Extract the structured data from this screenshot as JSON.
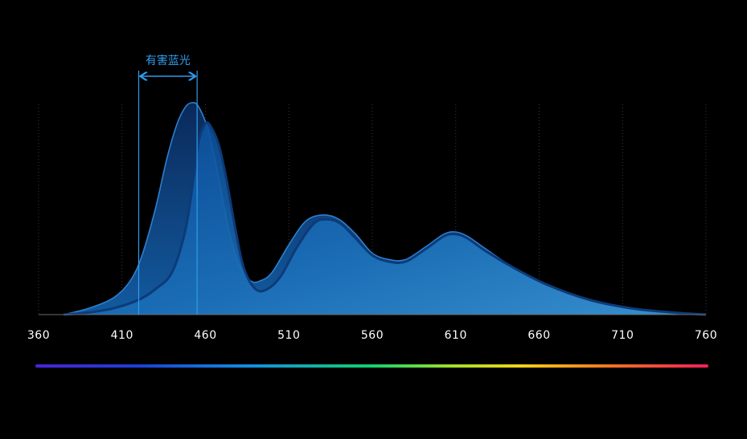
{
  "chart_data": {
    "type": "area",
    "xlabel": "",
    "ylabel": "",
    "xlim": [
      360,
      760
    ],
    "ylim": [
      0,
      1
    ],
    "grid": true,
    "x_ticks": [
      360,
      410,
      460,
      510,
      560,
      610,
      660,
      710,
      760
    ],
    "annotation": {
      "label": "有害蓝光",
      "range": [
        420,
        455
      ]
    },
    "spectrum_bar": true,
    "series": [
      {
        "style": "front-lighter",
        "points": [
          [
            375,
            0.0
          ],
          [
            390,
            0.01
          ],
          [
            405,
            0.03
          ],
          [
            420,
            0.07
          ],
          [
            430,
            0.12
          ],
          [
            440,
            0.2
          ],
          [
            448,
            0.4
          ],
          [
            453,
            0.65
          ],
          [
            456,
            0.82
          ],
          [
            460,
            0.9
          ],
          [
            463,
            0.89
          ],
          [
            468,
            0.8
          ],
          [
            473,
            0.62
          ],
          [
            478,
            0.4
          ],
          [
            483,
            0.22
          ],
          [
            490,
            0.12
          ],
          [
            497,
            0.12
          ],
          [
            505,
            0.18
          ],
          [
            515,
            0.32
          ],
          [
            525,
            0.43
          ],
          [
            533,
            0.45
          ],
          [
            541,
            0.43
          ],
          [
            550,
            0.36
          ],
          [
            560,
            0.28
          ],
          [
            570,
            0.25
          ],
          [
            580,
            0.25
          ],
          [
            592,
            0.31
          ],
          [
            603,
            0.37
          ],
          [
            610,
            0.38
          ],
          [
            617,
            0.36
          ],
          [
            628,
            0.3
          ],
          [
            645,
            0.22
          ],
          [
            665,
            0.14
          ],
          [
            690,
            0.07
          ],
          [
            715,
            0.03
          ],
          [
            740,
            0.01
          ],
          [
            760,
            0.0
          ]
        ]
      },
      {
        "style": "back-darker",
        "points": [
          [
            375,
            0.0
          ],
          [
            390,
            0.03
          ],
          [
            405,
            0.08
          ],
          [
            415,
            0.16
          ],
          [
            422,
            0.28
          ],
          [
            430,
            0.5
          ],
          [
            437,
            0.74
          ],
          [
            443,
            0.9
          ],
          [
            448,
            0.98
          ],
          [
            452,
            1.0
          ],
          [
            456,
            0.98
          ],
          [
            462,
            0.86
          ],
          [
            468,
            0.64
          ],
          [
            474,
            0.4
          ],
          [
            480,
            0.24
          ],
          [
            487,
            0.16
          ],
          [
            493,
            0.16
          ],
          [
            500,
            0.2
          ],
          [
            510,
            0.33
          ],
          [
            520,
            0.44
          ],
          [
            530,
            0.47
          ],
          [
            540,
            0.45
          ],
          [
            550,
            0.38
          ],
          [
            560,
            0.29
          ],
          [
            570,
            0.26
          ],
          [
            580,
            0.26
          ],
          [
            592,
            0.32
          ],
          [
            603,
            0.38
          ],
          [
            610,
            0.39
          ],
          [
            617,
            0.37
          ],
          [
            628,
            0.31
          ],
          [
            645,
            0.22
          ],
          [
            665,
            0.14
          ],
          [
            690,
            0.07
          ],
          [
            715,
            0.03
          ],
          [
            740,
            0.01
          ],
          [
            760,
            0.0
          ]
        ]
      }
    ]
  }
}
